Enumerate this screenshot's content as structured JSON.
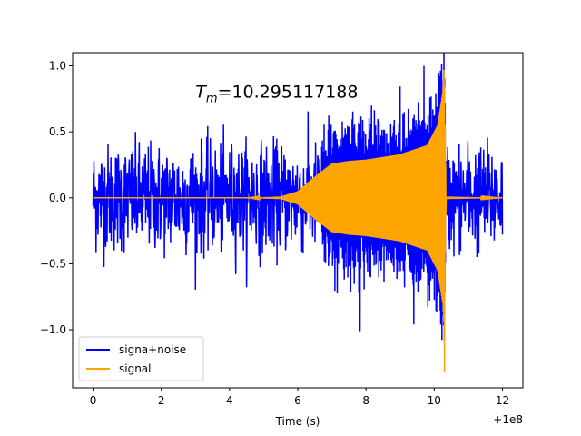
{
  "chart_data": {
    "type": "line",
    "title": "",
    "xlabel": "Time (s)",
    "ylabel": "",
    "x_offset_label": "+1e8",
    "xlim": [
      -0.6,
      12.6
    ],
    "ylim": [
      -1.44,
      1.1
    ],
    "xticks": [
      0,
      2,
      4,
      6,
      8,
      10,
      12
    ],
    "xtick_labels": [
      "0",
      "2",
      "4",
      "6",
      "8",
      "10",
      "12"
    ],
    "yticks": [
      -1.0,
      -0.5,
      0.0,
      0.5,
      1.0
    ],
    "ytick_labels": [
      "−1.0",
      "−0.5",
      "0.0",
      "0.5",
      "1.0"
    ],
    "annotation": {
      "text_prefix": "T",
      "text_subscript": "m",
      "text_value": "=10.295117188",
      "x": 3.0,
      "y": 0.8
    },
    "legend_position": "lower left",
    "grid": false,
    "series": [
      {
        "name": "signa+noise",
        "color": "#0000ff",
        "description_points": {
          "x_range": [
            0,
            12
          ],
          "noise_band_typical": [
            -0.5,
            0.5
          ],
          "max": 1.0,
          "min": -0.96,
          "max_x": 9.7,
          "min_x": 9.4
        }
      },
      {
        "name": "signal",
        "color": "#ffa500",
        "envelope_x": [
          0,
          4.5,
          5.5,
          6.0,
          6.5,
          7.0,
          7.5,
          8.0,
          9.0,
          9.8,
          10.1,
          10.25,
          10.295,
          10.35,
          12.0
        ],
        "envelope_y": [
          0,
          0.0,
          0.01,
          0.05,
          0.16,
          0.26,
          0.28,
          0.29,
          0.33,
          0.4,
          0.55,
          0.8,
          1.0,
          0.01,
          0.0
        ],
        "min_value": -1.32,
        "min_x": 10.3
      }
    ]
  }
}
